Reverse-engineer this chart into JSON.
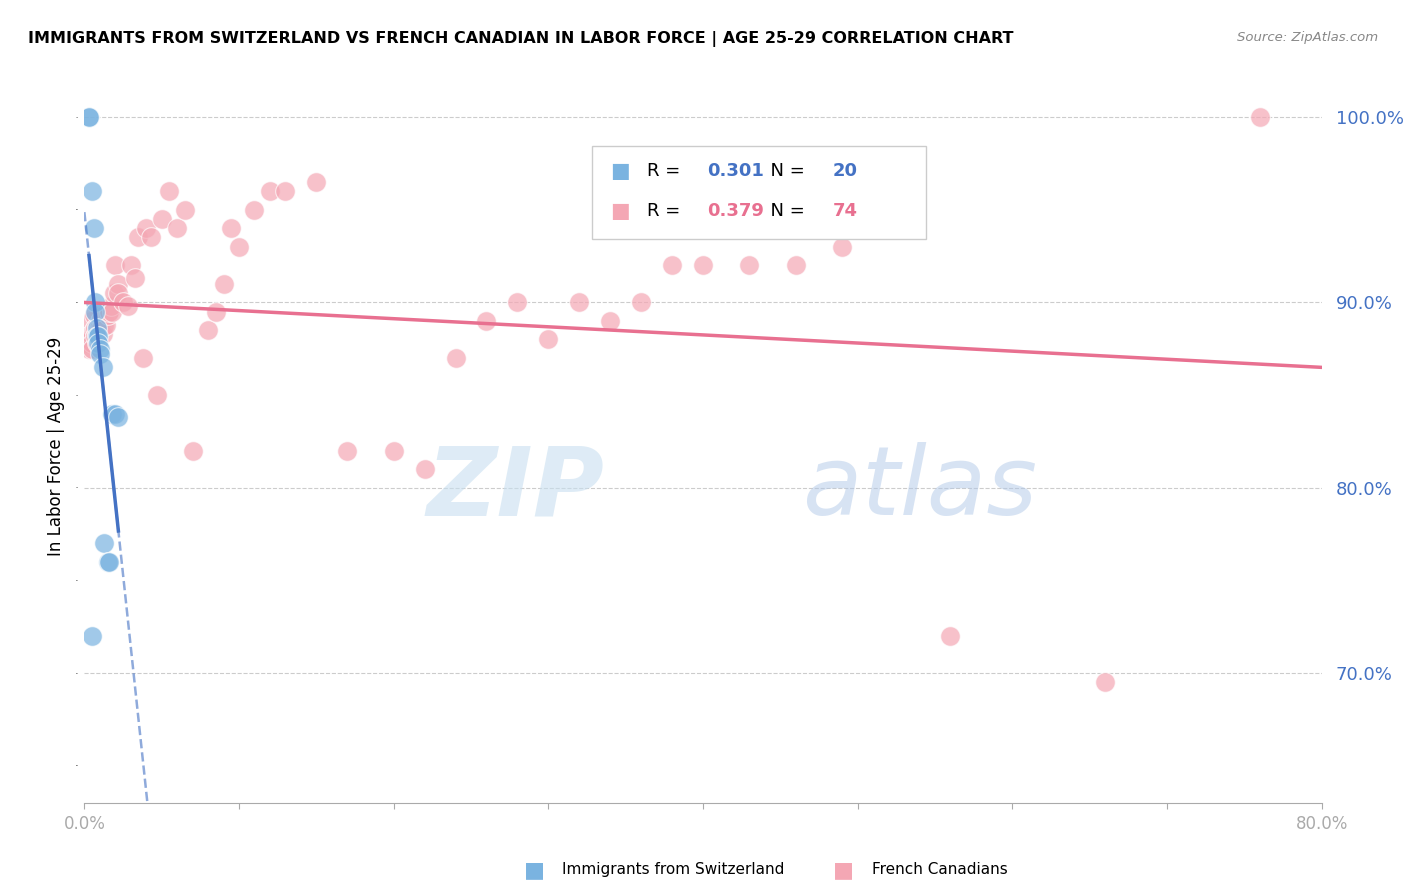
{
  "title": "IMMIGRANTS FROM SWITZERLAND VS FRENCH CANADIAN IN LABOR FORCE | AGE 25-29 CORRELATION CHART",
  "source": "Source: ZipAtlas.com",
  "ylabel": "In Labor Force | Age 25-29",
  "xlim": [
    0.0,
    0.8
  ],
  "ylim": [
    0.63,
    1.015
  ],
  "yticks": [
    0.7,
    0.8,
    0.9,
    1.0
  ],
  "xtick_left_label": "0.0%",
  "xtick_right_label": "80.0%",
  "ytick_labels": [
    "70.0%",
    "80.0%",
    "90.0%",
    "100.0%"
  ],
  "swiss_color": "#7ab3e0",
  "french_color": "#f4a7b4",
  "swiss_line_color": "#4472c4",
  "french_line_color": "#e87090",
  "legend_swiss_R": "0.301",
  "legend_swiss_N": "20",
  "legend_french_R": "0.379",
  "legend_french_N": "74",
  "swiss_x": [
    0.003,
    0.003,
    0.005,
    0.005,
    0.006,
    0.007,
    0.007,
    0.008,
    0.008,
    0.009,
    0.009,
    0.01,
    0.01,
    0.012,
    0.013,
    0.015,
    0.016,
    0.018,
    0.02,
    0.022
  ],
  "swiss_y": [
    1.0,
    1.0,
    0.96,
    0.72,
    0.94,
    0.9,
    0.895,
    0.886,
    0.882,
    0.882,
    0.878,
    0.875,
    0.872,
    0.865,
    0.77,
    0.76,
    0.76,
    0.84,
    0.84,
    0.838
  ],
  "french_x": [
    0.002,
    0.003,
    0.003,
    0.004,
    0.004,
    0.005,
    0.005,
    0.006,
    0.006,
    0.007,
    0.007,
    0.008,
    0.008,
    0.008,
    0.009,
    0.009,
    0.01,
    0.01,
    0.011,
    0.011,
    0.012,
    0.012,
    0.013,
    0.013,
    0.014,
    0.015,
    0.016,
    0.017,
    0.018,
    0.019,
    0.02,
    0.022,
    0.022,
    0.025,
    0.028,
    0.03,
    0.033,
    0.035,
    0.038,
    0.04,
    0.043,
    0.047,
    0.05,
    0.055,
    0.06,
    0.065,
    0.07,
    0.08,
    0.085,
    0.09,
    0.095,
    0.1,
    0.11,
    0.12,
    0.13,
    0.15,
    0.17,
    0.2,
    0.22,
    0.24,
    0.26,
    0.28,
    0.3,
    0.32,
    0.34,
    0.36,
    0.38,
    0.4,
    0.43,
    0.46,
    0.49,
    0.56,
    0.66,
    0.76
  ],
  "french_y": [
    0.878,
    0.882,
    0.875,
    0.89,
    0.883,
    0.878,
    0.875,
    0.893,
    0.885,
    0.886,
    0.882,
    0.887,
    0.883,
    0.878,
    0.885,
    0.88,
    0.89,
    0.887,
    0.891,
    0.886,
    0.89,
    0.883,
    0.893,
    0.887,
    0.888,
    0.893,
    0.895,
    0.898,
    0.895,
    0.905,
    0.92,
    0.91,
    0.905,
    0.9,
    0.898,
    0.92,
    0.913,
    0.935,
    0.87,
    0.94,
    0.935,
    0.85,
    0.945,
    0.96,
    0.94,
    0.95,
    0.82,
    0.885,
    0.895,
    0.91,
    0.94,
    0.93,
    0.95,
    0.96,
    0.96,
    0.965,
    0.82,
    0.82,
    0.81,
    0.87,
    0.89,
    0.9,
    0.88,
    0.9,
    0.89,
    0.9,
    0.92,
    0.92,
    0.92,
    0.92,
    0.93,
    0.72,
    0.695,
    1.0
  ]
}
